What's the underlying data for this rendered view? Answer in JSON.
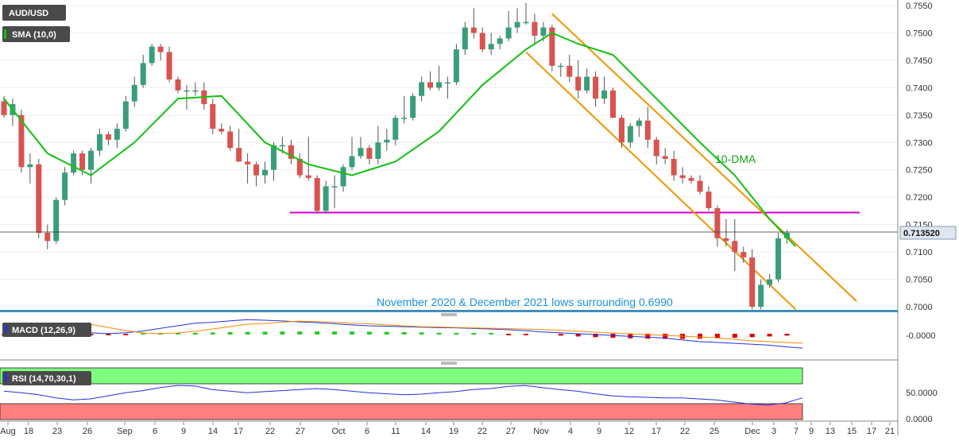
{
  "chart_data": {
    "type": "candlestick",
    "symbol": "AUD/USD",
    "indicator_sma": "SMA (10,0)",
    "indicator_macd": "MACD (12,26,9)",
    "indicator_rsi": "RSI (14,70,30,1)",
    "ma_label": "10-DMA",
    "annotation": "November 2020 & December 2021 lows surrounding 0.6990",
    "last_price": 0.71352,
    "last_price_label": "0.713520",
    "price_ticks": [
      "0.7550",
      "0.7500",
      "0.7450",
      "0.7400",
      "0.7350",
      "0.7300",
      "0.7250",
      "0.7200",
      "0.7150",
      "0.7100",
      "0.7050",
      "0.7000"
    ],
    "macd_tick": "-0.0000",
    "rsi_ticks": [
      "50.0000",
      "0.0000"
    ],
    "ylim": [
      0.6985,
      0.756
    ],
    "x_ticks": [
      "Aug",
      "18",
      "23",
      "26",
      "Sep",
      "6",
      "9",
      "14",
      "17",
      "22",
      "27",
      "Oct",
      "6",
      "11",
      "14",
      "19",
      "22",
      "27",
      "Nov",
      "4",
      "9",
      "12",
      "17",
      "22",
      "25",
      "Dec",
      "3",
      "7",
      "9",
      "13",
      "15",
      "17",
      "21"
    ],
    "colors": {
      "bull": "#3a9e7a",
      "bear": "#d9534f",
      "sma": "#11c011",
      "channel": "#f29400",
      "resistance": "#cc00cc",
      "support": "#1e8fd6",
      "macd": "#2233dd",
      "signal": "#ff8800",
      "hist_pos": "#22cc22",
      "hist_neg": "#dd0000",
      "rsi_ob": "#7fff7f",
      "rsi_os": "#ff7f7f"
    },
    "candles": [
      [
        0.7375,
        0.7385,
        0.7345,
        0.735
      ],
      [
        0.735,
        0.738,
        0.733,
        0.737
      ],
      [
        0.735,
        0.736,
        0.7245,
        0.7255
      ],
      [
        0.7255,
        0.728,
        0.7225,
        0.726
      ],
      [
        0.726,
        0.727,
        0.7125,
        0.7135
      ],
      [
        0.7135,
        0.715,
        0.7105,
        0.712
      ],
      [
        0.712,
        0.72,
        0.7115,
        0.7195
      ],
      [
        0.7195,
        0.7255,
        0.7185,
        0.7245
      ],
      [
        0.7245,
        0.7285,
        0.724,
        0.728
      ],
      [
        0.728,
        0.7285,
        0.724,
        0.725
      ],
      [
        0.725,
        0.729,
        0.7225,
        0.7285
      ],
      [
        0.7285,
        0.7325,
        0.7275,
        0.7315
      ],
      [
        0.7315,
        0.732,
        0.7295,
        0.7305
      ],
      [
        0.7305,
        0.7335,
        0.729,
        0.7325
      ],
      [
        0.7325,
        0.7385,
        0.732,
        0.7375
      ],
      [
        0.7375,
        0.742,
        0.7365,
        0.7405
      ],
      [
        0.7405,
        0.746,
        0.74,
        0.7445
      ],
      [
        0.7445,
        0.748,
        0.744,
        0.7475
      ],
      [
        0.7475,
        0.748,
        0.745,
        0.7465
      ],
      [
        0.7465,
        0.7475,
        0.741,
        0.7415
      ],
      [
        0.7415,
        0.742,
        0.739,
        0.7395
      ],
      [
        0.7395,
        0.7405,
        0.736,
        0.7395
      ],
      [
        0.7395,
        0.741,
        0.7385,
        0.7395
      ],
      [
        0.7395,
        0.741,
        0.736,
        0.737
      ],
      [
        0.737,
        0.738,
        0.7315,
        0.7325
      ],
      [
        0.7325,
        0.7335,
        0.7315,
        0.732
      ],
      [
        0.732,
        0.733,
        0.7285,
        0.729
      ],
      [
        0.729,
        0.7325,
        0.7265,
        0.7265
      ],
      [
        0.7265,
        0.728,
        0.7225,
        0.726
      ],
      [
        0.726,
        0.7265,
        0.722,
        0.724
      ],
      [
        0.724,
        0.7265,
        0.7225,
        0.725
      ],
      [
        0.725,
        0.73,
        0.723,
        0.7295
      ],
      [
        0.7295,
        0.731,
        0.728,
        0.7295
      ],
      [
        0.7295,
        0.7305,
        0.726,
        0.727
      ],
      [
        0.727,
        0.728,
        0.7235,
        0.724
      ],
      [
        0.724,
        0.731,
        0.723,
        0.7235
      ],
      [
        0.7235,
        0.724,
        0.717,
        0.7175
      ],
      [
        0.7175,
        0.723,
        0.717,
        0.722
      ],
      [
        0.722,
        0.724,
        0.718,
        0.722
      ],
      [
        0.722,
        0.726,
        0.721,
        0.7255
      ],
      [
        0.7255,
        0.731,
        0.725,
        0.7275
      ],
      [
        0.7275,
        0.731,
        0.727,
        0.729
      ],
      [
        0.729,
        0.7295,
        0.726,
        0.727
      ],
      [
        0.727,
        0.733,
        0.726,
        0.73
      ],
      [
        0.73,
        0.7325,
        0.7285,
        0.7305
      ],
      [
        0.7305,
        0.735,
        0.7295,
        0.7345
      ],
      [
        0.7345,
        0.7385,
        0.7335,
        0.7345
      ],
      [
        0.7345,
        0.739,
        0.734,
        0.7385
      ],
      [
        0.7385,
        0.742,
        0.7375,
        0.741
      ],
      [
        0.741,
        0.743,
        0.7395,
        0.74
      ],
      [
        0.74,
        0.744,
        0.7395,
        0.741
      ],
      [
        0.741,
        0.742,
        0.738,
        0.741
      ],
      [
        0.741,
        0.748,
        0.7405,
        0.747
      ],
      [
        0.747,
        0.752,
        0.746,
        0.751
      ],
      [
        0.751,
        0.7545,
        0.749,
        0.75
      ],
      [
        0.75,
        0.751,
        0.7465,
        0.747
      ],
      [
        0.747,
        0.75,
        0.746,
        0.748
      ],
      [
        0.748,
        0.7495,
        0.747,
        0.749
      ],
      [
        0.749,
        0.754,
        0.7485,
        0.751
      ],
      [
        0.751,
        0.7545,
        0.75,
        0.752
      ],
      [
        0.752,
        0.7555,
        0.7515,
        0.752
      ],
      [
        0.752,
        0.7535,
        0.748,
        0.7495
      ],
      [
        0.7495,
        0.752,
        0.7485,
        0.751
      ],
      [
        0.751,
        0.7515,
        0.743,
        0.744
      ],
      [
        0.744,
        0.7445,
        0.742,
        0.744
      ],
      [
        0.744,
        0.746,
        0.741,
        0.742
      ],
      [
        0.742,
        0.745,
        0.738,
        0.7395
      ],
      [
        0.7395,
        0.7435,
        0.739,
        0.742
      ],
      [
        0.742,
        0.743,
        0.7365,
        0.738
      ],
      [
        0.738,
        0.742,
        0.737,
        0.7395
      ],
      [
        0.7395,
        0.74,
        0.7345,
        0.7345
      ],
      [
        0.7345,
        0.735,
        0.729,
        0.73
      ],
      [
        0.73,
        0.7335,
        0.729,
        0.733
      ],
      [
        0.733,
        0.7345,
        0.731,
        0.734
      ],
      [
        0.734,
        0.7365,
        0.729,
        0.7305
      ],
      [
        0.7305,
        0.731,
        0.726,
        0.7275
      ],
      [
        0.7275,
        0.729,
        0.726,
        0.727
      ],
      [
        0.727,
        0.7285,
        0.723,
        0.724
      ],
      [
        0.724,
        0.7255,
        0.7225,
        0.7235
      ],
      [
        0.7235,
        0.724,
        0.7225,
        0.723
      ],
      [
        0.723,
        0.724,
        0.7205,
        0.721
      ],
      [
        0.721,
        0.722,
        0.7175,
        0.718
      ],
      [
        0.718,
        0.7185,
        0.711,
        0.7125
      ],
      [
        0.7125,
        0.716,
        0.711,
        0.712
      ],
      [
        0.712,
        0.716,
        0.7065,
        0.71
      ],
      [
        0.71,
        0.711,
        0.708,
        0.709
      ],
      [
        0.709,
        0.7105,
        0.6995,
        0.7
      ],
      [
        0.7,
        0.705,
        0.6995,
        0.704
      ],
      [
        0.704,
        0.706,
        0.7035,
        0.705
      ],
      [
        0.705,
        0.7135,
        0.7045,
        0.7125
      ],
      [
        0.7125,
        0.714,
        0.7115,
        0.7135
      ]
    ],
    "sma": [
      [
        0,
        0.738
      ],
      [
        5,
        0.728
      ],
      [
        10,
        0.724
      ],
      [
        15,
        0.73
      ],
      [
        20,
        0.738
      ],
      [
        25,
        0.7385
      ],
      [
        30,
        0.73
      ],
      [
        35,
        0.726
      ],
      [
        40,
        0.724
      ],
      [
        45,
        0.7265
      ],
      [
        50,
        0.732
      ],
      [
        55,
        0.7405
      ],
      [
        60,
        0.747
      ],
      [
        63,
        0.75
      ],
      [
        66,
        0.748
      ],
      [
        70,
        0.746
      ],
      [
        75,
        0.738
      ],
      [
        80,
        0.73
      ],
      [
        84,
        0.724
      ],
      [
        88,
        0.716
      ],
      [
        91,
        0.711
      ]
    ],
    "channel_upper": [
      [
        63,
        0.7535
      ],
      [
        98,
        0.701
      ]
    ],
    "channel_lower": [
      [
        60,
        0.7465
      ],
      [
        91,
        0.6995
      ]
    ],
    "resistance": 0.7172,
    "support": 0.6992,
    "macd_line": [
      0.5,
      0.55,
      0.65,
      0.45,
      0.25,
      0.1,
      0.05,
      0.1,
      0.2,
      0.35,
      0.5,
      0.65,
      0.7,
      0.78,
      0.85,
      0.82,
      0.78,
      0.72,
      0.68,
      0.62,
      0.55,
      0.5,
      0.48,
      0.45,
      0.42,
      0.4,
      0.38,
      0.35,
      0.32,
      0.28,
      0.22,
      0.15,
      0.1,
      0.05,
      0.0,
      -0.05,
      -0.1,
      -0.15,
      -0.2,
      -0.3,
      -0.4,
      -0.45,
      -0.5,
      -0.55,
      -0.6,
      -0.7,
      -0.78
    ],
    "rsi_values": [
      55,
      52,
      48,
      42,
      38,
      40,
      46,
      52,
      56,
      62,
      66,
      65,
      58,
      55,
      52,
      54,
      56,
      58,
      60,
      58,
      55,
      52,
      50,
      48,
      49,
      52,
      54,
      58,
      60,
      64,
      66,
      62,
      58,
      55,
      50,
      46,
      44,
      43,
      42,
      42,
      40,
      38,
      34,
      30,
      28,
      32,
      42
    ]
  }
}
